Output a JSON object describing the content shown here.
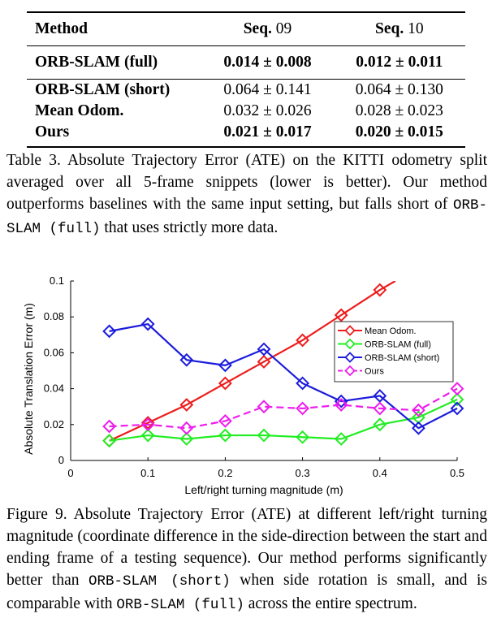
{
  "table": {
    "headers": {
      "method": "Method",
      "seq09_bold": "Seq.",
      "seq09_num": "09",
      "seq10_bold": "Seq.",
      "seq10_num": "10"
    },
    "rows": [
      {
        "method": "ORB-SLAM (full)",
        "seq09": "0.014 ± 0.008",
        "seq10": "0.012 ± 0.011"
      },
      {
        "method": "ORB-SLAM (short)",
        "seq09": "0.064 ± 0.141",
        "seq10": "0.064 ± 0.130"
      },
      {
        "method": "Mean Odom.",
        "seq09": "0.032 ± 0.026",
        "seq10": "0.028 ± 0.023"
      },
      {
        "method": "Ours",
        "seq09": "0.021 ± 0.017",
        "seq10": "0.020 ± 0.015"
      }
    ]
  },
  "table_caption": {
    "part1": "Table 3. Absolute Trajectory Error (ATE) on the KITTI odometry split averaged over all 5-frame snippets (lower is better). Our method outperforms baselines with the same input setting, but falls short of ",
    "code": "ORB-SLAM (full)",
    "part2": " that uses strictly more data."
  },
  "figure_caption": {
    "part1": "Figure 9. Absolute Trajectory Error (ATE) at different left/right turning magnitude (coordinate difference in the side-direction between the start and ending frame of a testing sequence). Our method performs significantly better than ",
    "code1": "ORB-SLAM (short)",
    "part2": " when side rotation is small, and is comparable with ",
    "code2": "ORB-SLAM (full)",
    "part3": " across the entire spectrum."
  },
  "chart_data": {
    "type": "line",
    "xlabel": "Left/right turning magnitude (m)",
    "ylabel": "Absolute Translation Error (m)",
    "xlim": [
      0,
      0.5
    ],
    "ylim": [
      0,
      0.1
    ],
    "x_ticks": [
      "0",
      "0.1",
      "0.2",
      "0.3",
      "0.4",
      "0.5"
    ],
    "y_ticks": [
      "0",
      "0.02",
      "0.04",
      "0.06",
      "0.08",
      "0.1"
    ],
    "legend_position": "upper-right",
    "grid": false,
    "series": [
      {
        "name": "Mean Odom.",
        "color": "#ee1c1c",
        "dash": "solid",
        "x": [
          0.05,
          0.1,
          0.15,
          0.2,
          0.25,
          0.3,
          0.35,
          0.4,
          0.42
        ],
        "y": [
          0.011,
          0.021,
          0.031,
          0.043,
          0.055,
          0.067,
          0.081,
          0.095,
          0.1
        ],
        "markers": [
          true,
          true,
          true,
          true,
          true,
          true,
          true,
          true,
          false
        ]
      },
      {
        "name": "ORB-SLAM (full)",
        "color": "#22ee22",
        "dash": "solid",
        "x": [
          0.05,
          0.1,
          0.15,
          0.2,
          0.25,
          0.3,
          0.35,
          0.4,
          0.45,
          0.5
        ],
        "y": [
          0.011,
          0.014,
          0.012,
          0.014,
          0.014,
          0.013,
          0.012,
          0.02,
          0.024,
          0.034
        ]
      },
      {
        "name": "ORB-SLAM (short)",
        "color": "#1c1cdd",
        "dash": "solid",
        "x": [
          0.05,
          0.1,
          0.15,
          0.2,
          0.25,
          0.3,
          0.35,
          0.4,
          0.45,
          0.5
        ],
        "y": [
          0.072,
          0.076,
          0.056,
          0.053,
          0.062,
          0.043,
          0.033,
          0.036,
          0.018,
          0.029
        ]
      },
      {
        "name": "Ours",
        "color": "#ee1cee",
        "dash": "dashed",
        "x": [
          0.05,
          0.1,
          0.15,
          0.2,
          0.25,
          0.3,
          0.35,
          0.4,
          0.45,
          0.5
        ],
        "y": [
          0.019,
          0.02,
          0.018,
          0.022,
          0.03,
          0.029,
          0.031,
          0.029,
          0.028,
          0.04
        ]
      }
    ]
  }
}
